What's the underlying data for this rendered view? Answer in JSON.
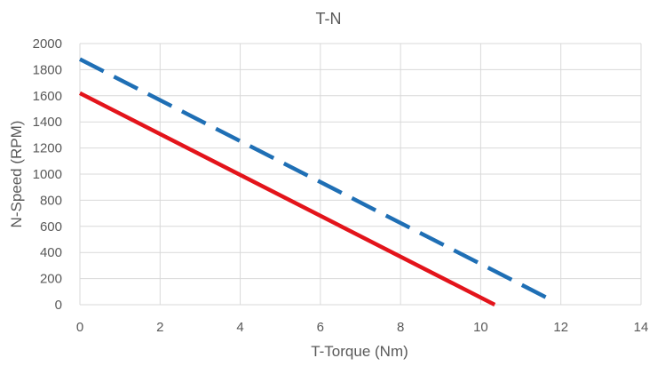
{
  "chart_data": {
    "type": "line",
    "title": "T-N",
    "xlabel": "T-Torque (Nm)",
    "ylabel": "N-Speed (RPM)",
    "xlim": [
      0,
      14
    ],
    "ylim": [
      0,
      2000
    ],
    "x_ticks": [
      0,
      2,
      4,
      6,
      8,
      10,
      12,
      14
    ],
    "y_ticks": [
      0,
      200,
      400,
      600,
      800,
      1000,
      1200,
      1400,
      1600,
      1800,
      2000
    ],
    "grid": true,
    "series": [
      {
        "name": "solid-red",
        "color": "#e3141b",
        "dash": false,
        "x": [
          0,
          10.35
        ],
        "y": [
          1620,
          0
        ]
      },
      {
        "name": "dashed-blue",
        "color": "#1f6fb5",
        "dash": true,
        "x": [
          0,
          11.8
        ],
        "y": [
          1880,
          30
        ]
      }
    ]
  }
}
